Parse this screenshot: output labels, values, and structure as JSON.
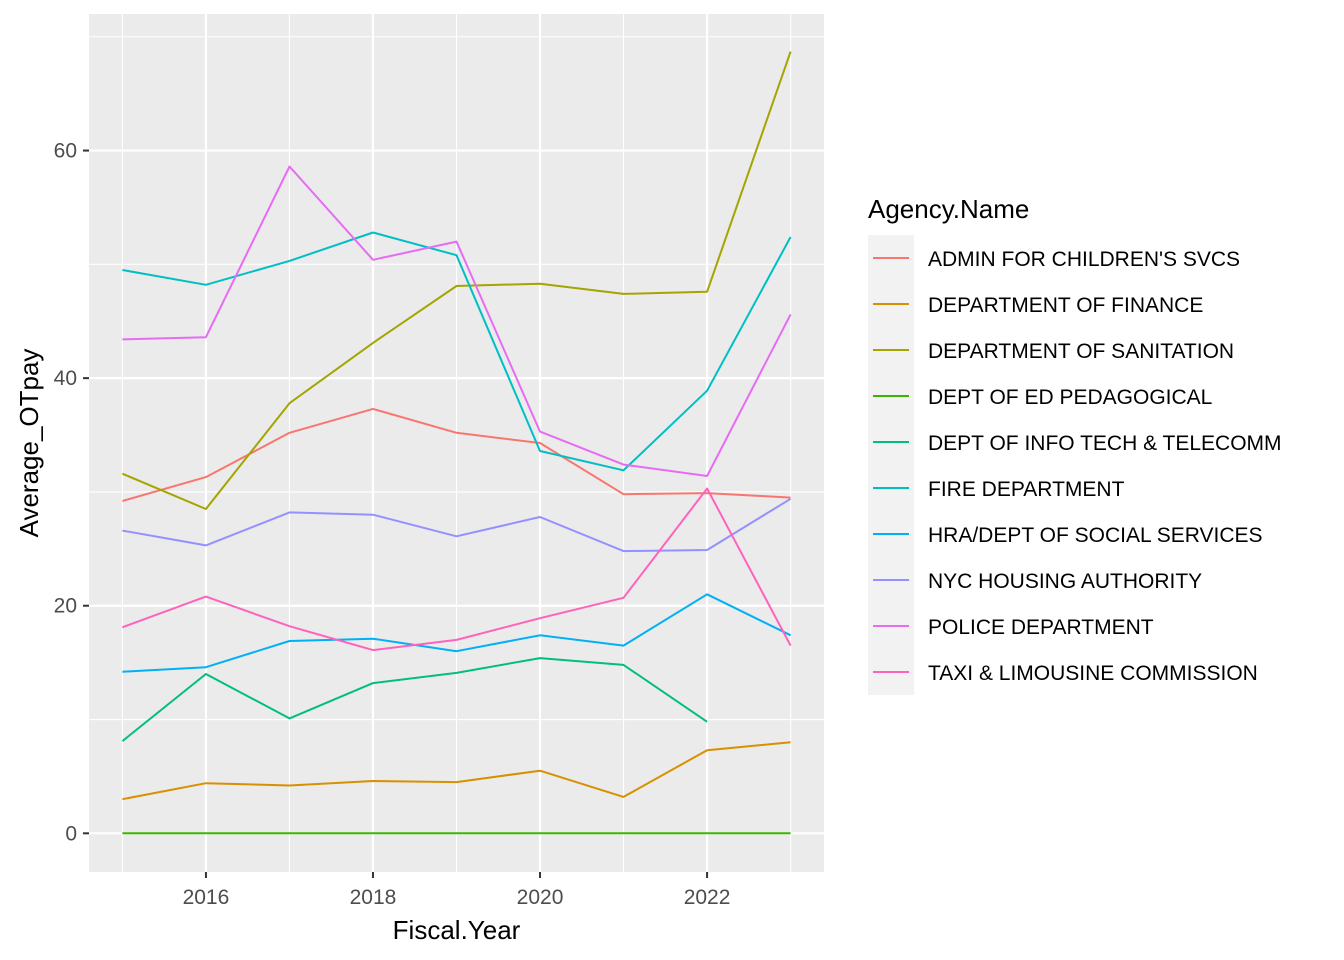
{
  "chart_data": {
    "type": "line",
    "title": "",
    "xlabel": "Fiscal.Year",
    "ylabel": "Average_OTpay",
    "xlim": [
      2014.6,
      2023.4
    ],
    "ylim": [
      -3.4,
      72.0
    ],
    "x_ticks": [
      2016,
      2018,
      2020,
      2022
    ],
    "y_ticks": [
      0,
      20,
      40,
      60
    ],
    "grid": true,
    "legend": {
      "title": "Agency.Name",
      "position": "right"
    },
    "x": [
      2015,
      2016,
      2017,
      2018,
      2019,
      2020,
      2021,
      2022,
      2023
    ],
    "series": [
      {
        "name": "ADMIN FOR CHILDREN'S SVCS",
        "color": "#F8766D",
        "values": [
          29.2,
          31.3,
          35.2,
          37.3,
          35.2,
          34.3,
          29.8,
          29.9,
          29.5
        ]
      },
      {
        "name": "DEPARTMENT OF FINANCE",
        "color": "#D89000",
        "values": [
          3.0,
          4.4,
          4.2,
          4.6,
          4.5,
          5.5,
          3.2,
          7.3,
          8.0
        ]
      },
      {
        "name": "DEPARTMENT OF SANITATION",
        "color": "#A3A500",
        "values": [
          31.6,
          28.5,
          37.8,
          43.1,
          48.1,
          48.3,
          47.4,
          47.6,
          68.7
        ]
      },
      {
        "name": "DEPT OF ED PEDAGOGICAL",
        "color": "#39B600",
        "values": [
          0.0,
          0.0,
          0.0,
          0.0,
          0.0,
          0.0,
          0.0,
          0.0,
          0.0
        ]
      },
      {
        "name": "DEPT OF INFO TECH & TELECOMM",
        "color": "#00BF7D",
        "values": [
          8.1,
          14.0,
          10.1,
          13.2,
          14.1,
          15.4,
          14.8,
          9.8,
          null
        ]
      },
      {
        "name": "FIRE DEPARTMENT",
        "color": "#00BFC4",
        "values": [
          49.5,
          48.2,
          50.3,
          52.8,
          50.8,
          33.6,
          31.9,
          38.9,
          52.4
        ]
      },
      {
        "name": "HRA/DEPT OF SOCIAL SERVICES",
        "color": "#00B0F6",
        "values": [
          14.2,
          14.6,
          16.9,
          17.1,
          16.0,
          17.4,
          16.5,
          21.0,
          17.4
        ]
      },
      {
        "name": "NYC HOUSING AUTHORITY",
        "color": "#9590FF",
        "values": [
          26.6,
          25.3,
          28.2,
          28.0,
          26.1,
          27.8,
          24.8,
          24.9,
          29.4
        ]
      },
      {
        "name": "POLICE DEPARTMENT",
        "color": "#E76BF3",
        "values": [
          43.4,
          43.6,
          58.6,
          50.4,
          52.0,
          35.3,
          32.4,
          31.4,
          45.6
        ]
      },
      {
        "name": "TAXI & LIMOUSINE COMMISSION",
        "color": "#FF62BC",
        "values": [
          18.1,
          20.8,
          18.2,
          16.1,
          17.0,
          18.9,
          20.7,
          30.3,
          16.5
        ]
      }
    ]
  }
}
